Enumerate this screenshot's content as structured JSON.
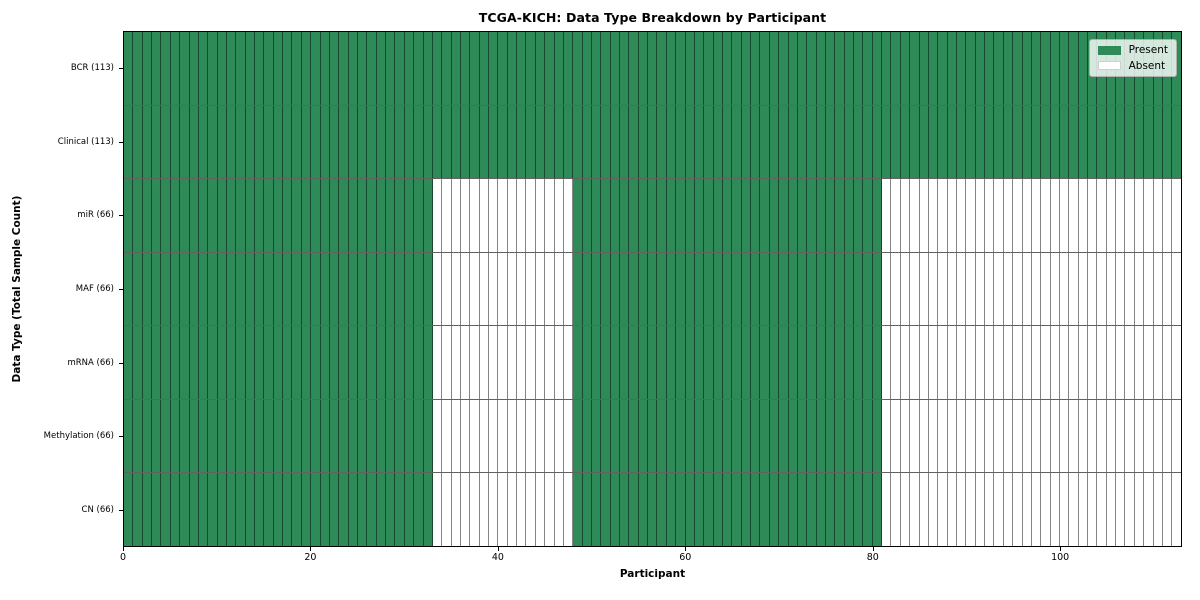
{
  "chart_data": {
    "type": "heatmap",
    "title": "TCGA-KICH: Data Type Breakdown by Participant",
    "xlabel": "Participant",
    "ylabel": "Data Type (Total Sample Count)",
    "xlim": [
      0,
      113
    ],
    "n_participants": 113,
    "x_ticks": [
      0,
      20,
      40,
      60,
      80,
      100
    ],
    "grid": false,
    "legend_position": "upper right",
    "colors": {
      "present": "#2e8b57",
      "absent": "#ffffff"
    },
    "legend": [
      {
        "label": "Present",
        "color": "#2e8b57"
      },
      {
        "label": "Absent",
        "color": "#ffffff"
      }
    ],
    "rows": [
      {
        "name": "BCR",
        "label": "BCR (113)",
        "present_count": 113,
        "present_segments": [
          [
            0,
            113
          ]
        ]
      },
      {
        "name": "Clinical",
        "label": "Clinical (113)",
        "present_count": 113,
        "present_segments": [
          [
            0,
            113
          ]
        ]
      },
      {
        "name": "miR",
        "label": "miR (66)",
        "present_count": 66,
        "present_segments": [
          [
            0,
            33
          ],
          [
            48,
            81
          ]
        ]
      },
      {
        "name": "MAF",
        "label": "MAF (66)",
        "present_count": 66,
        "present_segments": [
          [
            0,
            33
          ],
          [
            48,
            81
          ]
        ]
      },
      {
        "name": "mRNA",
        "label": "mRNA (66)",
        "present_count": 66,
        "present_segments": [
          [
            0,
            33
          ],
          [
            48,
            81
          ]
        ]
      },
      {
        "name": "Methylation",
        "label": "Methylation (66)",
        "present_count": 66,
        "present_segments": [
          [
            0,
            33
          ],
          [
            48,
            81
          ]
        ]
      },
      {
        "name": "CN",
        "label": "CN (66)",
        "present_count": 66,
        "present_segments": [
          [
            0,
            33
          ],
          [
            48,
            81
          ]
        ]
      }
    ]
  }
}
